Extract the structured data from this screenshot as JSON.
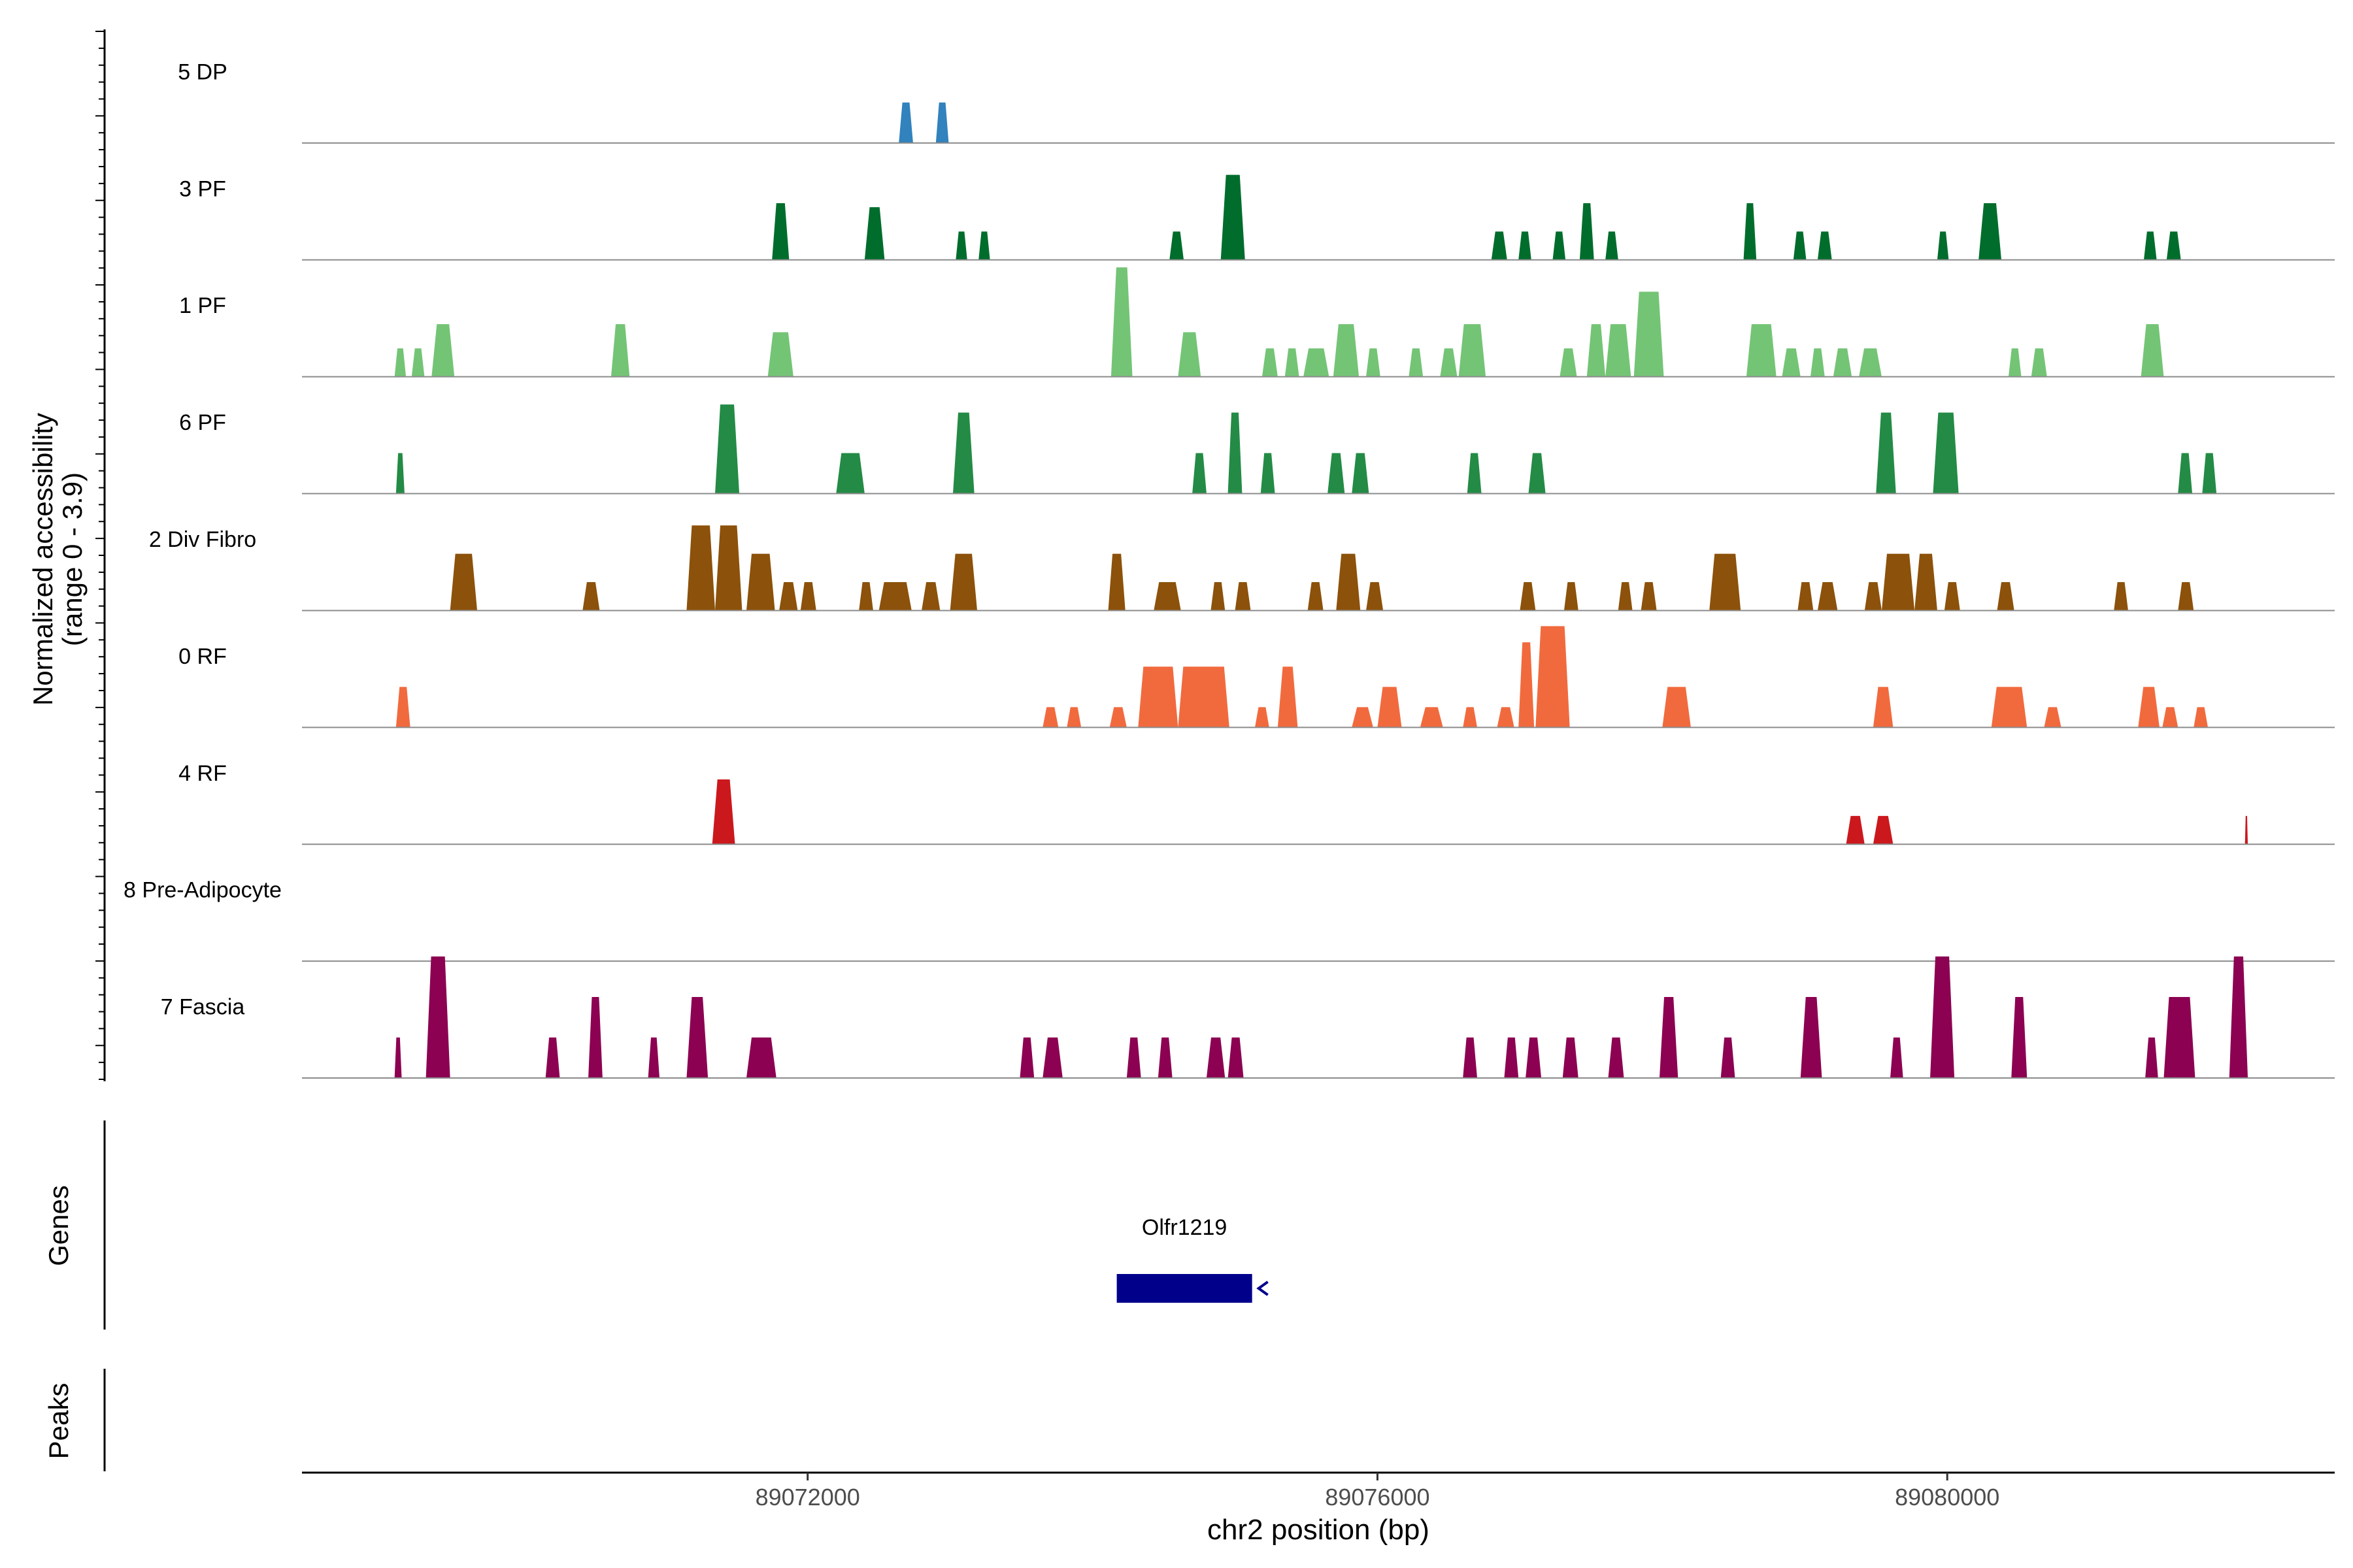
{
  "chart_data": {
    "type": "area",
    "title": "",
    "ylabel": "Normalized accessibility",
    "ylabel_range": "(range 0 - 3.9)",
    "xlabel": "chr2 position (bp)",
    "xlim": [
      89068450,
      89082720
    ],
    "ymax": 3.9,
    "x_ticks": [
      {
        "value": 89072000,
        "label": "89072000"
      },
      {
        "value": 89076000,
        "label": "89076000"
      },
      {
        "value": 89080000,
        "label": "89080000"
      }
    ],
    "tracks": [
      {
        "name": "5 DP",
        "color": "#3182bd",
        "peaks": [
          [
            89072640,
            89072740,
            1.0
          ],
          [
            89072900,
            89072990,
            1.0
          ]
        ]
      },
      {
        "name": "3 PF",
        "color": "#006d2c",
        "peaks": [
          [
            89071750,
            89071870,
            1.4
          ],
          [
            89072400,
            89072540,
            1.3
          ],
          [
            89073040,
            89073120,
            0.7
          ],
          [
            89073200,
            89073280,
            0.7
          ],
          [
            89074540,
            89074640,
            0.7
          ],
          [
            89074900,
            89075070,
            2.1
          ],
          [
            89076800,
            89076910,
            0.7
          ],
          [
            89076990,
            89077080,
            0.7
          ],
          [
            89077230,
            89077320,
            0.7
          ],
          [
            89077420,
            89077520,
            1.4
          ],
          [
            89077600,
            89077690,
            0.7
          ],
          [
            89078570,
            89078660,
            1.4
          ],
          [
            89078920,
            89079010,
            0.7
          ],
          [
            89079090,
            89079190,
            0.7
          ],
          [
            89079930,
            89080010,
            0.7
          ],
          [
            89080220,
            89080380,
            1.4
          ],
          [
            89081380,
            89081470,
            0.7
          ],
          [
            89081540,
            89081640,
            0.7
          ]
        ]
      },
      {
        "name": "1 PF",
        "color": "#74c476",
        "peaks": [
          [
            89069100,
            89069180,
            0.7
          ],
          [
            89069220,
            89069310,
            0.7
          ],
          [
            89069360,
            89069520,
            1.3
          ],
          [
            89070620,
            89070750,
            1.3
          ],
          [
            89071720,
            89071900,
            1.1
          ],
          [
            89074130,
            89074280,
            2.7
          ],
          [
            89074600,
            89074760,
            1.1
          ],
          [
            89075190,
            89075300,
            0.7
          ],
          [
            89075350,
            89075450,
            0.7
          ],
          [
            89075480,
            89075660,
            0.7
          ],
          [
            89075690,
            89075870,
            1.3
          ],
          [
            89075920,
            89076020,
            0.7
          ],
          [
            89076220,
            89076320,
            0.7
          ],
          [
            89076440,
            89076560,
            0.7
          ],
          [
            89076570,
            89076760,
            1.3
          ],
          [
            89077280,
            89077400,
            0.7
          ],
          [
            89077470,
            89077600,
            1.3
          ],
          [
            89077600,
            89077780,
            1.3
          ],
          [
            89077800,
            89078010,
            2.1
          ],
          [
            89078590,
            89078800,
            1.3
          ],
          [
            89078840,
            89078970,
            0.7
          ],
          [
            89079040,
            89079140,
            0.7
          ],
          [
            89079200,
            89079330,
            0.7
          ],
          [
            89079380,
            89079540,
            0.7
          ],
          [
            89080430,
            89080520,
            0.7
          ],
          [
            89080590,
            89080700,
            0.7
          ],
          [
            89081360,
            89081520,
            1.3
          ]
        ]
      },
      {
        "name": "6 PF",
        "color": "#238b45",
        "peaks": [
          [
            89069110,
            89069170,
            1.0
          ],
          [
            89071350,
            89071520,
            2.2
          ],
          [
            89072200,
            89072400,
            1.0
          ],
          [
            89073020,
            89073170,
            2.0
          ],
          [
            89074700,
            89074800,
            1.0
          ],
          [
            89074950,
            89075050,
            2.0
          ],
          [
            89075180,
            89075280,
            1.0
          ],
          [
            89075650,
            89075770,
            1.0
          ],
          [
            89075820,
            89075940,
            1.0
          ],
          [
            89076630,
            89076730,
            1.0
          ],
          [
            89077060,
            89077180,
            1.0
          ],
          [
            89079500,
            89079640,
            2.0
          ],
          [
            89079900,
            89080080,
            2.0
          ],
          [
            89081620,
            89081720,
            1.0
          ],
          [
            89081790,
            89081890,
            1.0
          ]
        ]
      },
      {
        "name": "2 Div Fibro",
        "color": "#8c510a",
        "peaks": [
          [
            89069490,
            89069680,
            1.4
          ],
          [
            89070420,
            89070540,
            0.7
          ],
          [
            89071150,
            89071350,
            2.1
          ],
          [
            89071350,
            89071540,
            2.1
          ],
          [
            89071570,
            89071770,
            1.4
          ],
          [
            89071800,
            89071930,
            0.7
          ],
          [
            89071950,
            89072060,
            0.7
          ],
          [
            89072360,
            89072460,
            0.7
          ],
          [
            89072500,
            89072730,
            0.7
          ],
          [
            89072800,
            89072930,
            0.7
          ],
          [
            89073000,
            89073190,
            1.4
          ],
          [
            89074110,
            89074230,
            1.4
          ],
          [
            89074430,
            89074620,
            0.7
          ],
          [
            89074830,
            89074930,
            0.7
          ],
          [
            89075000,
            89075110,
            0.7
          ],
          [
            89075510,
            89075620,
            0.7
          ],
          [
            89075710,
            89075880,
            1.4
          ],
          [
            89075920,
            89076040,
            0.7
          ],
          [
            89077000,
            89077110,
            0.7
          ],
          [
            89077310,
            89077410,
            0.7
          ],
          [
            89077690,
            89077790,
            0.7
          ],
          [
            89077850,
            89077960,
            0.7
          ],
          [
            89078330,
            89078550,
            1.4
          ],
          [
            89078950,
            89079060,
            0.7
          ],
          [
            89079090,
            89079230,
            0.7
          ],
          [
            89079420,
            89079540,
            0.7
          ],
          [
            89079540,
            89079770,
            1.4
          ],
          [
            89079770,
            89079930,
            1.4
          ],
          [
            89079980,
            89080090,
            0.7
          ],
          [
            89080350,
            89080470,
            0.7
          ],
          [
            89081170,
            89081270,
            0.7
          ],
          [
            89081620,
            89081730,
            0.7
          ]
        ]
      },
      {
        "name": "0 RF",
        "color": "#f16a3e",
        "peaks": [
          [
            89069110,
            89069210,
            1.0
          ],
          [
            89073650,
            89073760,
            0.5
          ],
          [
            89073820,
            89073920,
            0.5
          ],
          [
            89074120,
            89074240,
            0.5
          ],
          [
            89074320,
            89074600,
            1.5
          ],
          [
            89074600,
            89074960,
            1.5
          ],
          [
            89075140,
            89075240,
            0.5
          ],
          [
            89075300,
            89075440,
            1.5
          ],
          [
            89075820,
            89075970,
            0.5
          ],
          [
            89076000,
            89076170,
            1.0
          ],
          [
            89076300,
            89076460,
            0.5
          ],
          [
            89076600,
            89076700,
            0.5
          ],
          [
            89076840,
            89076960,
            0.5
          ],
          [
            89076990,
            89077100,
            2.1
          ],
          [
            89077110,
            89077350,
            2.5
          ],
          [
            89078000,
            89078200,
            1.0
          ],
          [
            89079480,
            89079620,
            1.0
          ],
          [
            89080310,
            89080560,
            1.0
          ],
          [
            89080680,
            89080800,
            0.5
          ],
          [
            89081340,
            89081490,
            1.0
          ],
          [
            89081510,
            89081620,
            0.5
          ],
          [
            89081730,
            89081830,
            0.5
          ]
        ]
      },
      {
        "name": "4 RF",
        "color": "#cb181d",
        "peaks": [
          [
            89071330,
            89071490,
            1.6
          ],
          [
            89079290,
            89079420,
            0.7
          ],
          [
            89079480,
            89079620,
            0.7
          ],
          [
            89082090,
            89082110,
            0.7
          ]
        ]
      },
      {
        "name": "8 Pre-Adipocyte",
        "color": "#fec44f",
        "peaks": []
      },
      {
        "name": "7 Fascia",
        "color": "#8c0152",
        "peaks": [
          [
            89069100,
            89069150,
            1.0
          ],
          [
            89069320,
            89069490,
            3.0
          ],
          [
            89070160,
            89070260,
            1.0
          ],
          [
            89070460,
            89070560,
            2.0
          ],
          [
            89070880,
            89070960,
            1.0
          ],
          [
            89071150,
            89071300,
            2.0
          ],
          [
            89071570,
            89071780,
            1.0
          ],
          [
            89073490,
            89073590,
            1.0
          ],
          [
            89073650,
            89073790,
            1.0
          ],
          [
            89074240,
            89074340,
            1.0
          ],
          [
            89074460,
            89074560,
            1.0
          ],
          [
            89074800,
            89074930,
            1.0
          ],
          [
            89074950,
            89075060,
            1.0
          ],
          [
            89076600,
            89076700,
            1.0
          ],
          [
            89076890,
            89076990,
            1.0
          ],
          [
            89077040,
            89077150,
            1.0
          ],
          [
            89077300,
            89077410,
            1.0
          ],
          [
            89077620,
            89077730,
            1.0
          ],
          [
            89077980,
            89078110,
            2.0
          ],
          [
            89078410,
            89078510,
            1.0
          ],
          [
            89078970,
            89079120,
            2.0
          ],
          [
            89079600,
            89079690,
            1.0
          ],
          [
            89079880,
            89080050,
            3.0
          ],
          [
            89080450,
            89080560,
            2.0
          ],
          [
            89081390,
            89081480,
            1.0
          ],
          [
            89081520,
            89081740,
            2.0
          ],
          [
            89081980,
            89082110,
            3.0
          ]
        ]
      }
    ],
    "genes": [
      {
        "name": "Olfr1219",
        "start": 89074170,
        "end": 89075120,
        "strand": "-",
        "color": "#00008b"
      }
    ],
    "panel_labels": {
      "genes": "Genes",
      "peaks": "Peaks"
    }
  }
}
